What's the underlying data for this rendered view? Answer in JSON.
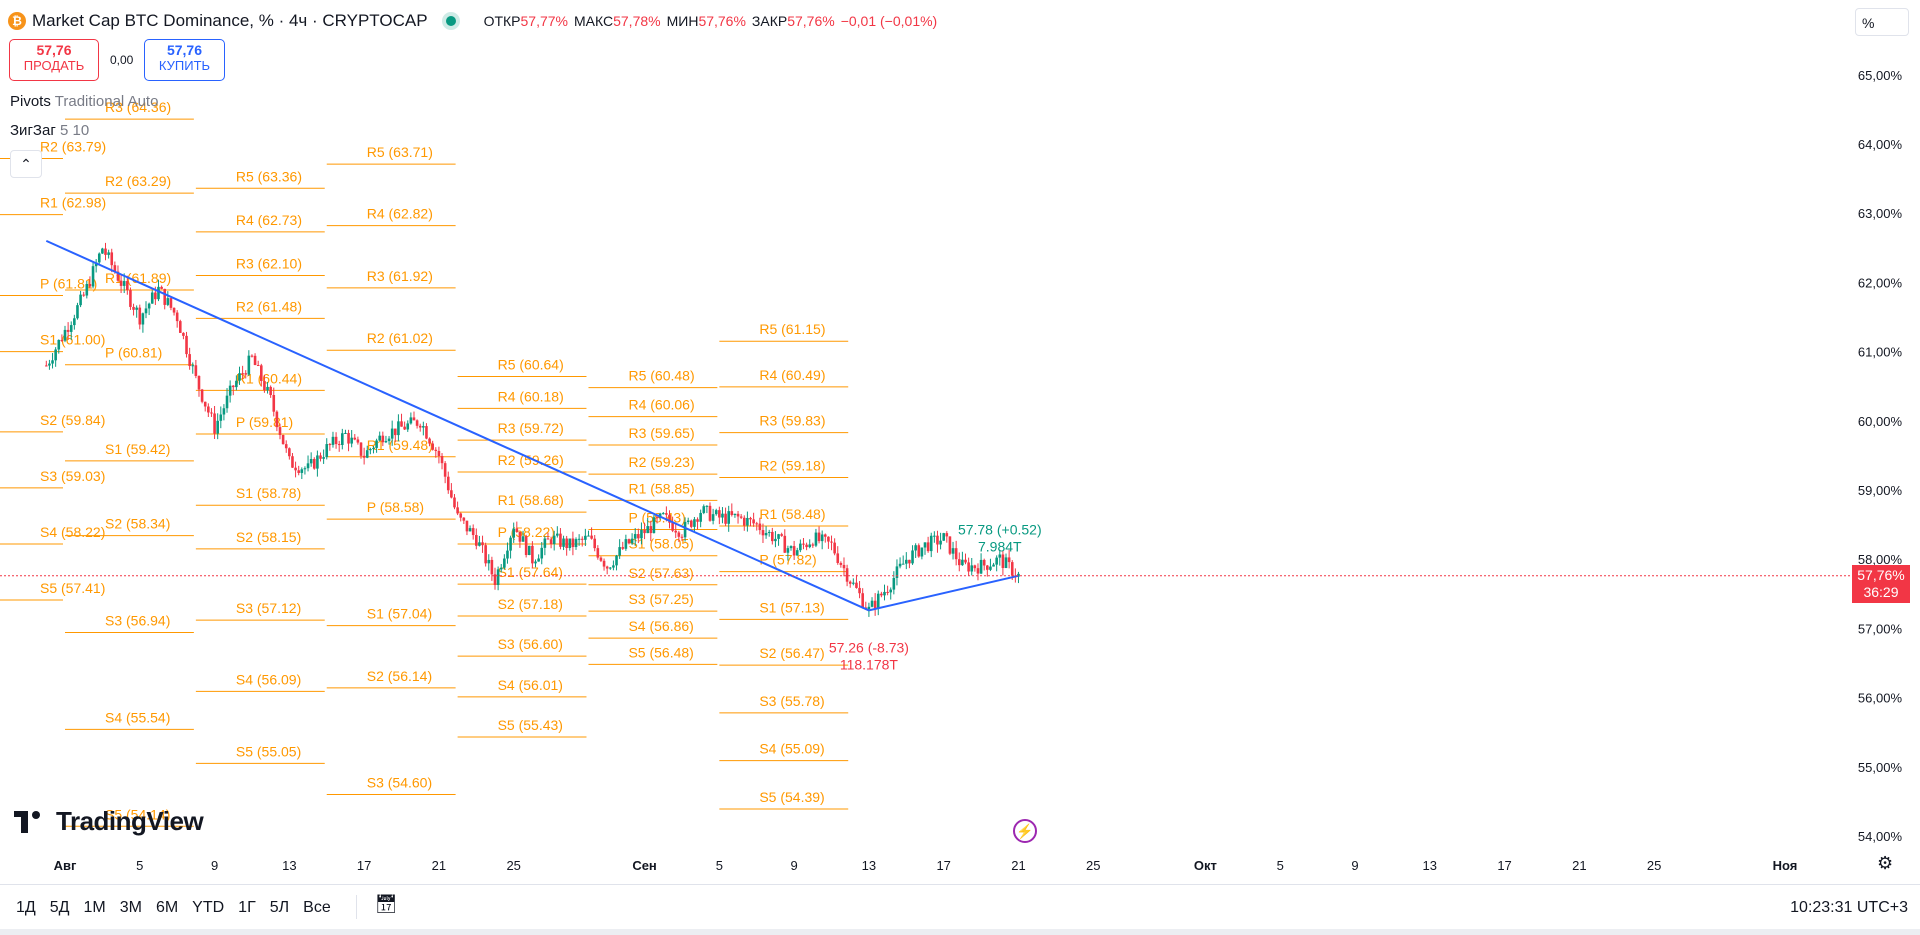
{
  "header": {
    "coin_icon": "bitcoin-icon",
    "coin_glyph": "₿",
    "title": "Market Cap BTC Dominance, % · 4ч · CRYPTOCAP",
    "ohlc": [
      {
        "key": "ОТКР",
        "val": "57,77%"
      },
      {
        "key": "МАКС",
        "val": "57,78%"
      },
      {
        "key": "МИН",
        "val": "57,76%"
      },
      {
        "key": "ЗАКР",
        "val": "57,76%"
      }
    ],
    "change": "−0,01 (−0,01%)"
  },
  "trade": {
    "sell_price": "57,76",
    "sell_label": "ПРОДАТЬ",
    "spread": "0,00",
    "buy_price": "57,76",
    "buy_label": "КУПИТЬ"
  },
  "indicators": {
    "pivots_name": "Pivots",
    "pivots_params": "Traditional Auto",
    "zigzag_name": "ЗигЗаг",
    "zigzag_params": "5 10",
    "collapse_icon": "chevron-up-icon"
  },
  "scale": {
    "mode_label": "%",
    "last_price": "57,76%",
    "countdown": "36:29"
  },
  "branding": {
    "logo_text": "TradingView"
  },
  "bottom": {
    "ranges": [
      "1Д",
      "5Д",
      "1M",
      "3M",
      "6M",
      "YTD",
      "1Г",
      "5Л",
      "Все"
    ],
    "calendar_icon": "calendar-range-icon",
    "clock": "10:23:31 UTC+3",
    "settings_icon": "gear-icon",
    "flash_icon": "lightning-icon"
  },
  "colors": {
    "up": "#089981",
    "down": "#f23645",
    "pivot": "#ff9800",
    "trend": "#2962ff",
    "accent": "#2962ff"
  },
  "chart_data": {
    "type": "candlestick",
    "timeframe": "4ч",
    "y_axis": {
      "ylim": [
        53.9,
        65.5
      ],
      "ticks": [
        "54,00%",
        "55,00%",
        "56,00%",
        "57,00%",
        "58,00%",
        "59,00%",
        "60,00%",
        "61,00%",
        "62,00%",
        "63,00%",
        "64,00%",
        "65,00%"
      ],
      "tick_values": [
        54,
        55,
        56,
        57,
        58,
        59,
        60,
        61,
        62,
        63,
        64,
        65
      ]
    },
    "x_axis": {
      "ticks": [
        {
          "label": "Авг",
          "date": "2024-08-01",
          "bold": true
        },
        {
          "label": "5",
          "date": "2024-08-05"
        },
        {
          "label": "9",
          "date": "2024-08-09"
        },
        {
          "label": "13",
          "date": "2024-08-13"
        },
        {
          "label": "17",
          "date": "2024-08-17"
        },
        {
          "label": "21",
          "date": "2024-08-21"
        },
        {
          "label": "25",
          "date": "2024-08-25"
        },
        {
          "label": "Сен",
          "date": "2024-09-01",
          "bold": true
        },
        {
          "label": "5",
          "date": "2024-09-05"
        },
        {
          "label": "9",
          "date": "2024-09-09"
        },
        {
          "label": "13",
          "date": "2024-09-13"
        },
        {
          "label": "17",
          "date": "2024-09-17"
        },
        {
          "label": "21",
          "date": "2024-09-21"
        },
        {
          "label": "25",
          "date": "2024-09-25"
        },
        {
          "label": "Окт",
          "date": "2024-10-01",
          "bold": true
        },
        {
          "label": "5",
          "date": "2024-10-05"
        },
        {
          "label": "9",
          "date": "2024-10-09"
        },
        {
          "label": "13",
          "date": "2024-10-13"
        },
        {
          "label": "17",
          "date": "2024-10-17"
        },
        {
          "label": "21",
          "date": "2024-10-21"
        },
        {
          "label": "25",
          "date": "2024-10-25"
        },
        {
          "label": "Ноя",
          "date": "2024-11-01",
          "bold": true
        }
      ]
    },
    "price_path": [
      {
        "date": "2024-07-31",
        "value": 60.8
      },
      {
        "date": "2024-08-01",
        "value": 61.3
      },
      {
        "date": "2024-08-02",
        "value": 61.8
      },
      {
        "date": "2024-08-03",
        "value": 62.5
      },
      {
        "date": "2024-08-04",
        "value": 62.0
      },
      {
        "date": "2024-08-05",
        "value": 61.5
      },
      {
        "date": "2024-08-06",
        "value": 61.9
      },
      {
        "date": "2024-08-07",
        "value": 61.5
      },
      {
        "date": "2024-08-08",
        "value": 60.6
      },
      {
        "date": "2024-08-09",
        "value": 59.9
      },
      {
        "date": "2024-08-10",
        "value": 60.5
      },
      {
        "date": "2024-08-11",
        "value": 60.9
      },
      {
        "date": "2024-08-12",
        "value": 60.3
      },
      {
        "date": "2024-08-13",
        "value": 59.4
      },
      {
        "date": "2024-08-14",
        "value": 59.3
      },
      {
        "date": "2024-08-15",
        "value": 59.6
      },
      {
        "date": "2024-08-16",
        "value": 59.8
      },
      {
        "date": "2024-08-17",
        "value": 59.5
      },
      {
        "date": "2024-08-18",
        "value": 59.8
      },
      {
        "date": "2024-08-19",
        "value": 59.9
      },
      {
        "date": "2024-08-20",
        "value": 60.0
      },
      {
        "date": "2024-08-21",
        "value": 59.5
      },
      {
        "date": "2024-08-22",
        "value": 58.6
      },
      {
        "date": "2024-08-23",
        "value": 58.3
      },
      {
        "date": "2024-08-24",
        "value": 57.7
      },
      {
        "date": "2024-08-25",
        "value": 58.5
      },
      {
        "date": "2024-08-26",
        "value": 58.0
      },
      {
        "date": "2024-08-27",
        "value": 58.3
      },
      {
        "date": "2024-08-28",
        "value": 58.2
      },
      {
        "date": "2024-08-29",
        "value": 58.3
      },
      {
        "date": "2024-08-30",
        "value": 57.9
      },
      {
        "date": "2024-08-31",
        "value": 58.2
      },
      {
        "date": "2024-09-01",
        "value": 58.4
      },
      {
        "date": "2024-09-02",
        "value": 58.6
      },
      {
        "date": "2024-09-03",
        "value": 58.4
      },
      {
        "date": "2024-09-04",
        "value": 58.7
      },
      {
        "date": "2024-09-05",
        "value": 58.6
      },
      {
        "date": "2024-09-06",
        "value": 58.6
      },
      {
        "date": "2024-09-07",
        "value": 58.5
      },
      {
        "date": "2024-09-08",
        "value": 58.3
      },
      {
        "date": "2024-09-09",
        "value": 58.1
      },
      {
        "date": "2024-09-10",
        "value": 58.3
      },
      {
        "date": "2024-09-11",
        "value": 58.2
      },
      {
        "date": "2024-09-12",
        "value": 57.7
      },
      {
        "date": "2024-09-13",
        "value": 57.26
      },
      {
        "date": "2024-09-14",
        "value": 57.6
      },
      {
        "date": "2024-09-15",
        "value": 58.0
      },
      {
        "date": "2024-09-16",
        "value": 58.2
      },
      {
        "date": "2024-09-17",
        "value": 58.3
      },
      {
        "date": "2024-09-18",
        "value": 57.9
      },
      {
        "date": "2024-09-19",
        "value": 57.9
      },
      {
        "date": "2024-09-20",
        "value": 58.0
      },
      {
        "date": "2024-09-21",
        "value": 57.76
      }
    ],
    "pivot_levels": [
      {
        "start": "2024-07-25",
        "end": "2024-08-01",
        "levels": [
          {
            "name": "R2",
            "label": "R2 (63.79)",
            "value": 63.79
          },
          {
            "name": "R1",
            "label": "R1 (62.98)",
            "value": 62.98
          },
          {
            "name": "P",
            "label": "P (61.81)",
            "value": 61.81
          },
          {
            "name": "S1",
            "label": "S1 (61.00)",
            "value": 61.0
          },
          {
            "name": "S2",
            "label": "S2 (59.84)",
            "value": 59.84
          },
          {
            "name": "S3",
            "label": "S3 (59.03)",
            "value": 59.03
          },
          {
            "name": "S4",
            "label": "S4 (58.22)",
            "value": 58.22
          },
          {
            "name": "S5",
            "label": "S5 (57.41)",
            "value": 57.41
          }
        ]
      },
      {
        "start": "2024-08-01",
        "end": "2024-08-08",
        "levels": [
          {
            "name": "R3",
            "label": "R3 (64.36)",
            "value": 64.36
          },
          {
            "name": "R2",
            "label": "R2 (63.29)",
            "value": 63.29
          },
          {
            "name": "R1",
            "label": "R1 (61.89)",
            "value": 61.89
          },
          {
            "name": "P",
            "label": "P (60.81)",
            "value": 60.81
          },
          {
            "name": "S1",
            "label": "S1 (59.42)",
            "value": 59.42
          },
          {
            "name": "S2",
            "label": "S2 (58.34)",
            "value": 58.34
          },
          {
            "name": "S3",
            "label": "S3 (56.94)",
            "value": 56.94
          },
          {
            "name": "S4",
            "label": "S4 (55.54)",
            "value": 55.54
          },
          {
            "name": "S5",
            "label": "S5 (54.14)",
            "value": 54.14
          }
        ]
      },
      {
        "start": "2024-08-08",
        "end": "2024-08-15",
        "levels": [
          {
            "name": "R5",
            "label": "R5 (63.36)",
            "value": 63.36
          },
          {
            "name": "R4",
            "label": "R4 (62.73)",
            "value": 62.73
          },
          {
            "name": "R3",
            "label": "R3 (62.10)",
            "value": 62.1
          },
          {
            "name": "R2",
            "label": "R2 (61.48)",
            "value": 61.48
          },
          {
            "name": "R1",
            "label": "R1 (60.44)",
            "value": 60.44
          },
          {
            "name": "P",
            "label": "P (59.81)",
            "value": 59.81
          },
          {
            "name": "S1",
            "label": "S1 (58.78)",
            "value": 58.78
          },
          {
            "name": "S2",
            "label": "S2 (58.15)",
            "value": 58.15
          },
          {
            "name": "S3",
            "label": "S3 (57.12)",
            "value": 57.12
          },
          {
            "name": "S4",
            "label": "S4 (56.09)",
            "value": 56.09
          },
          {
            "name": "S5",
            "label": "S5 (55.05)",
            "value": 55.05
          }
        ]
      },
      {
        "start": "2024-08-15",
        "end": "2024-08-22",
        "levels": [
          {
            "name": "R5",
            "label": "R5 (63.71)",
            "value": 63.71
          },
          {
            "name": "R4",
            "label": "R4 (62.82)",
            "value": 62.82
          },
          {
            "name": "R3",
            "label": "R3 (61.92)",
            "value": 61.92
          },
          {
            "name": "R2",
            "label": "R2 (61.02)",
            "value": 61.02
          },
          {
            "name": "R1",
            "label": "R1 (59.48)",
            "value": 59.48
          },
          {
            "name": "P",
            "label": "P (58.58)",
            "value": 58.58
          },
          {
            "name": "S1",
            "label": "S1 (57.04)",
            "value": 57.04
          },
          {
            "name": "S2",
            "label": "S2 (56.14)",
            "value": 56.14
          },
          {
            "name": "S3",
            "label": "S3 (54.60)",
            "value": 54.6
          }
        ]
      },
      {
        "start": "2024-08-22",
        "end": "2024-08-29",
        "levels": [
          {
            "name": "R5",
            "label": "R5 (60.64)",
            "value": 60.64
          },
          {
            "name": "R4",
            "label": "R4 (60.18)",
            "value": 60.18
          },
          {
            "name": "R3",
            "label": "R3 (59.72)",
            "value": 59.72
          },
          {
            "name": "R2",
            "label": "R2 (59.26)",
            "value": 59.26
          },
          {
            "name": "R1",
            "label": "R1 (58.68)",
            "value": 58.68
          },
          {
            "name": "P",
            "label": "P (58.22)",
            "value": 58.22
          },
          {
            "name": "S1",
            "label": "S1 (57.64)",
            "value": 57.64
          },
          {
            "name": "S2",
            "label": "S2 (57.18)",
            "value": 57.18
          },
          {
            "name": "S3",
            "label": "S3 (56.60)",
            "value": 56.6
          },
          {
            "name": "S4",
            "label": "S4 (56.01)",
            "value": 56.01
          },
          {
            "name": "S5",
            "label": "S5 (55.43)",
            "value": 55.43
          }
        ]
      },
      {
        "start": "2024-08-29",
        "end": "2024-09-05",
        "levels": [
          {
            "name": "R5",
            "label": "R5 (60.48)",
            "value": 60.48
          },
          {
            "name": "R4",
            "label": "R4 (60.06)",
            "value": 60.06
          },
          {
            "name": "R3",
            "label": "R3 (59.65)",
            "value": 59.65
          },
          {
            "name": "R2",
            "label": "R2 (59.23)",
            "value": 59.23
          },
          {
            "name": "R1",
            "label": "R1 (58.85)",
            "value": 58.85
          },
          {
            "name": "P",
            "label": "P (58.43)",
            "value": 58.43
          },
          {
            "name": "S1",
            "label": "S1 (58.05)",
            "value": 58.05
          },
          {
            "name": "S2",
            "label": "S2 (57.63)",
            "value": 57.63
          },
          {
            "name": "S3",
            "label": "S3 (57.25)",
            "value": 57.25
          },
          {
            "name": "S4",
            "label": "S4 (56.86)",
            "value": 56.86
          },
          {
            "name": "S5",
            "label": "S5 (56.48)",
            "value": 56.48
          }
        ]
      },
      {
        "start": "2024-09-05",
        "end": "2024-09-12",
        "levels": [
          {
            "name": "R5",
            "label": "R5 (61.15)",
            "value": 61.15
          },
          {
            "name": "R4",
            "label": "R4 (60.49)",
            "value": 60.49
          },
          {
            "name": "R3",
            "label": "R3 (59.83)",
            "value": 59.83
          },
          {
            "name": "R2",
            "label": "R2 (59.18)",
            "value": 59.18
          },
          {
            "name": "R1",
            "label": "R1 (58.48)",
            "value": 58.48
          },
          {
            "name": "P",
            "label": "P (57.82)",
            "value": 57.82
          },
          {
            "name": "S1",
            "label": "S1 (57.13)",
            "value": 57.13
          },
          {
            "name": "S2",
            "label": "S2 (56.47)",
            "value": 56.47
          },
          {
            "name": "S3",
            "label": "S3 (55.78)",
            "value": 55.78
          },
          {
            "name": "S4",
            "label": "S4 (55.09)",
            "value": 55.09
          },
          {
            "name": "S5",
            "label": "S5 (54.39)",
            "value": 54.39
          }
        ]
      }
    ],
    "trendlines": [
      {
        "from": {
          "date": "2024-07-31",
          "value": 62.6
        },
        "to": {
          "date": "2024-09-13",
          "value": 57.26
        }
      },
      {
        "from": {
          "date": "2024-09-13",
          "value": 57.26
        },
        "to": {
          "date": "2024-09-21",
          "value": 57.76
        }
      }
    ],
    "zigzag_labels": [
      {
        "date": "2024-09-20",
        "value": 57.78,
        "text": "57.78 (+0.52)",
        "sub": "7.984T",
        "color": "up"
      },
      {
        "date": "2024-09-13",
        "value": 57.26,
        "text": "57.26 (-8.73)",
        "sub": "118.178T",
        "color": "down"
      }
    ],
    "last_value": 57.76
  }
}
